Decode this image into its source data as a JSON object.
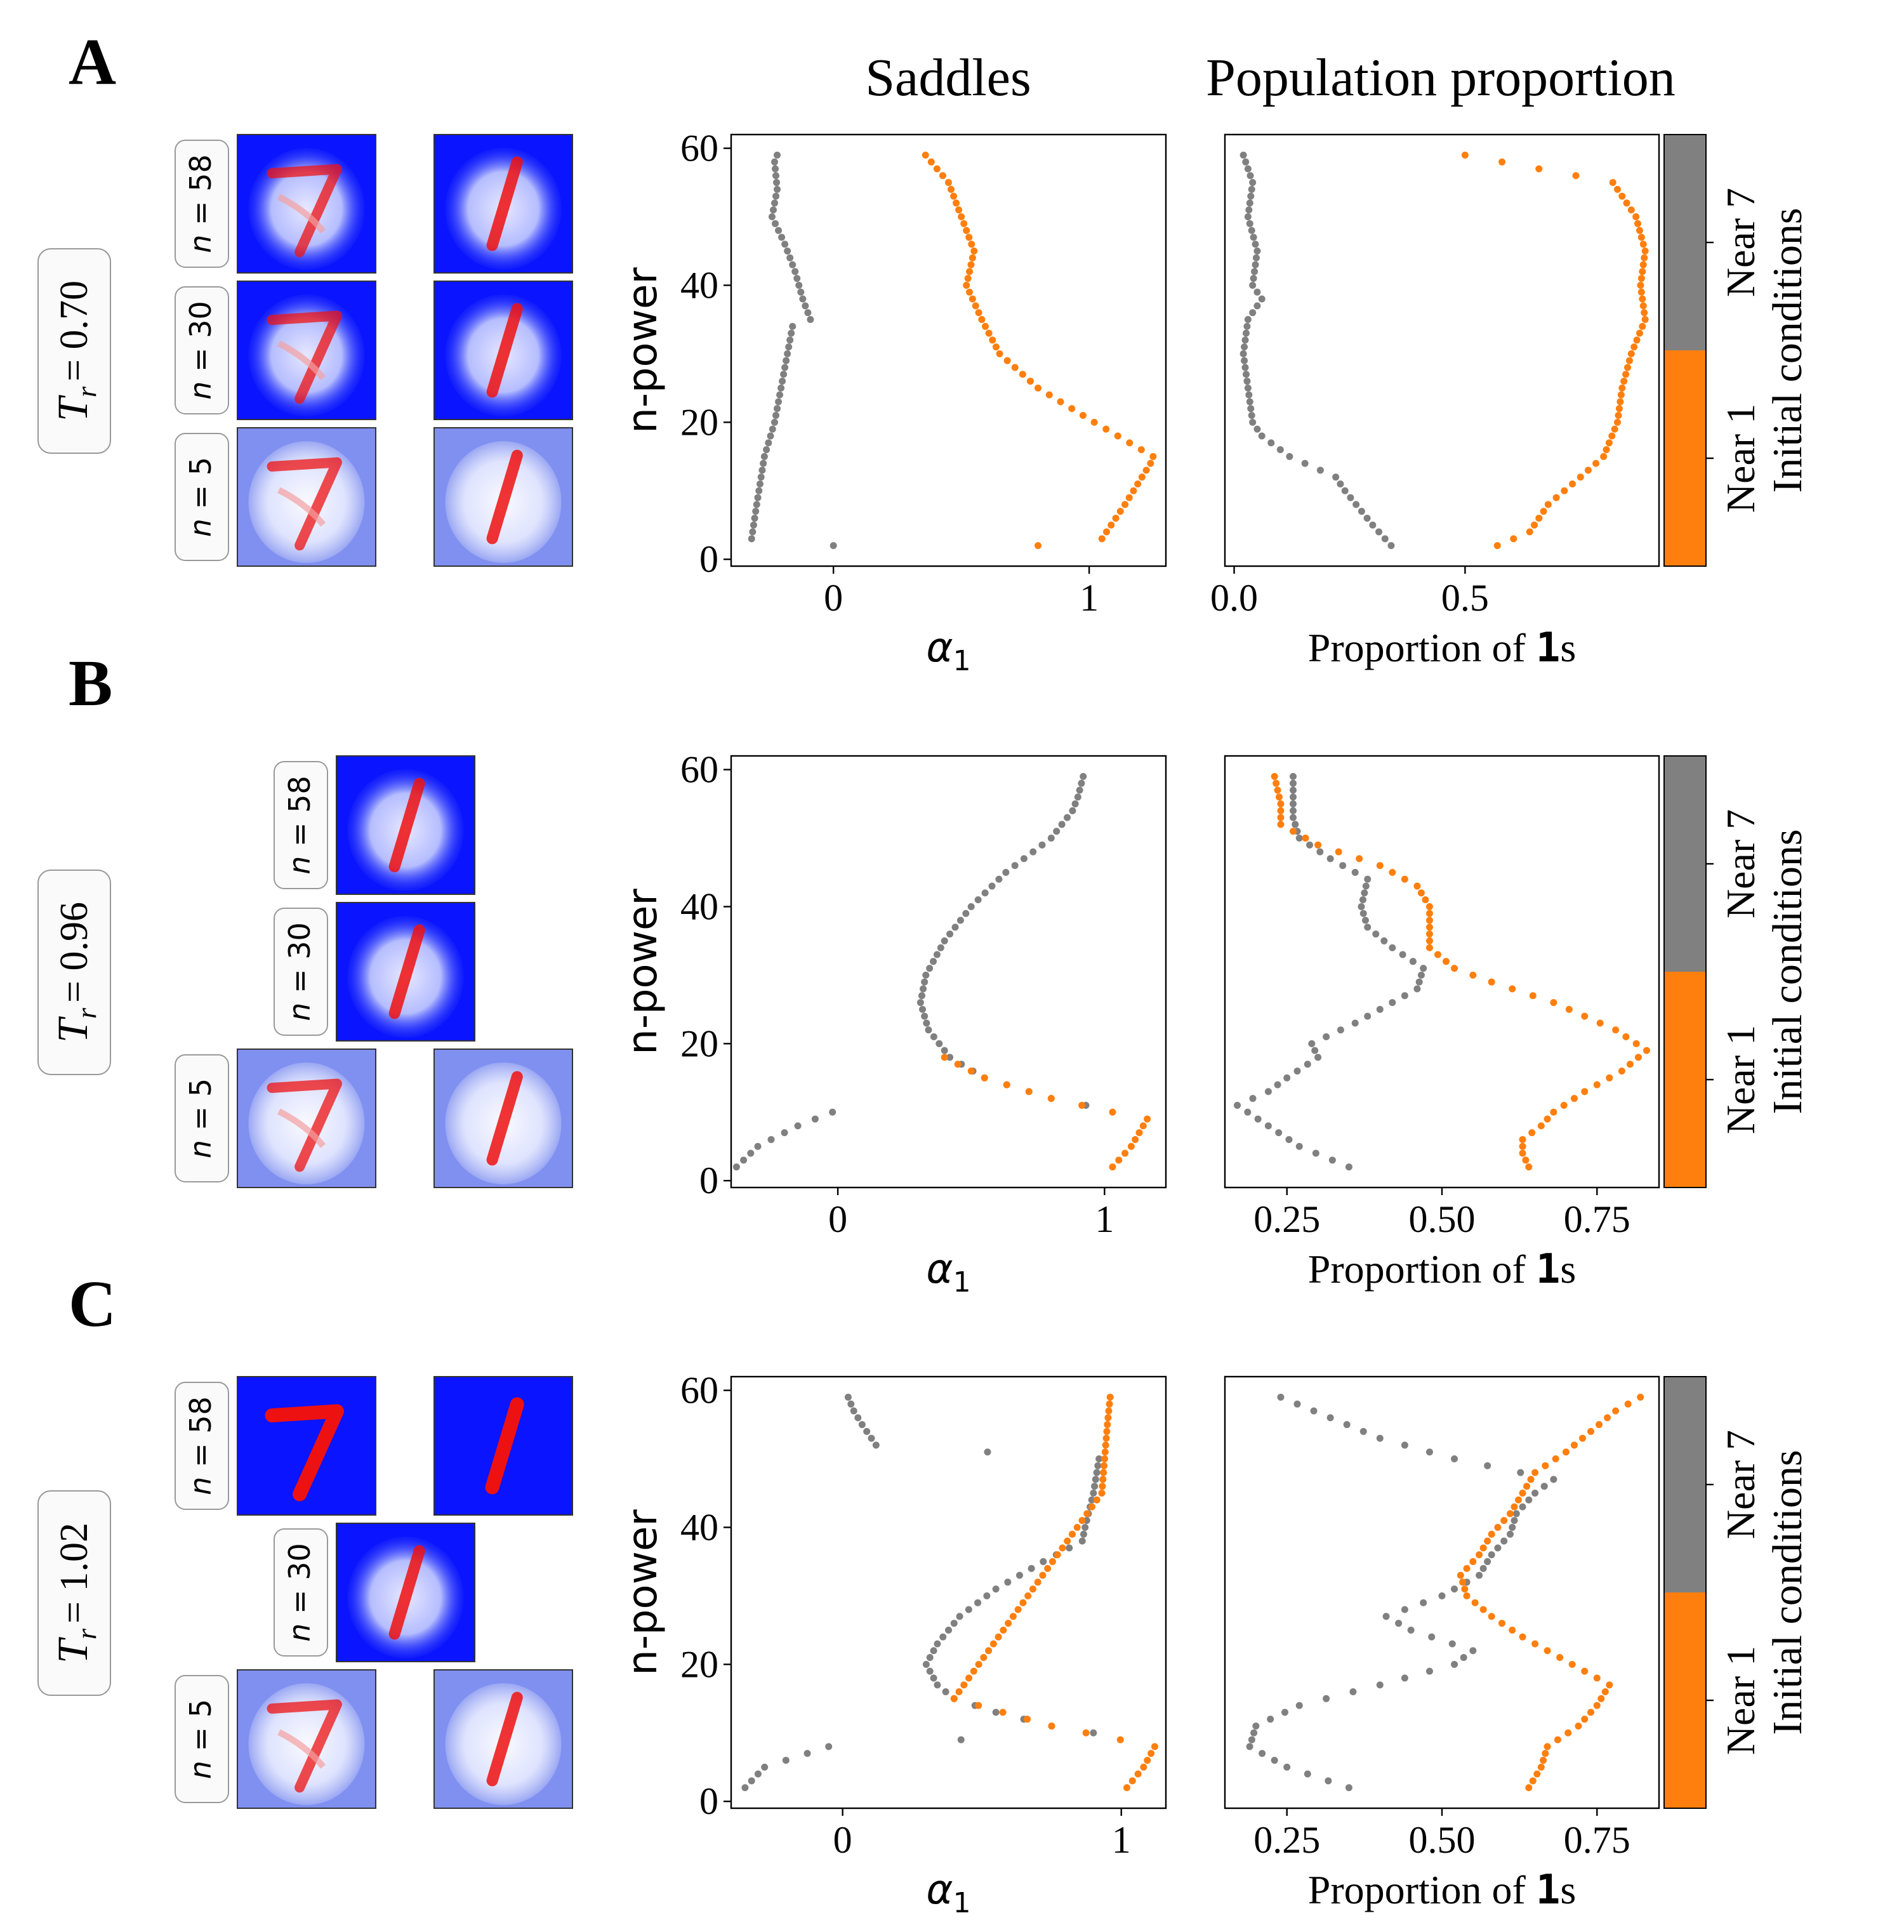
{
  "column_titles": {
    "saddles": "Saddles",
    "population": "Population proportion"
  },
  "colors": {
    "seven": "#808080",
    "one": "#ff7f0e"
  },
  "labels": {
    "n_power": "n-power",
    "alpha": "α",
    "alpha_sub": "1",
    "prop_prefix": "Proportion of ",
    "prop_bold": "1",
    "prop_suffix": "s",
    "colorbar_title": "Initial conditions",
    "near7": "Near 7",
    "near1": "Near 1",
    "n_eq": "n = "
  },
  "panels": [
    {
      "letter": "A",
      "tr_symbol": "T",
      "tr_sub": "r",
      "tr_value": "= 0.70",
      "images": [
        {
          "n": "58",
          "pair": true,
          "fade": 0.0
        },
        {
          "n": "30",
          "pair": true,
          "fade": 0.0
        },
        {
          "n": "5",
          "pair": true,
          "fade": 0.6
        }
      ]
    },
    {
      "letter": "B",
      "tr_symbol": "T",
      "tr_sub": "r",
      "tr_value": "= 0.96",
      "images": [
        {
          "n": "58",
          "pair": false,
          "fade": 0.0
        },
        {
          "n": "30",
          "pair": false,
          "fade": 0.0
        },
        {
          "n": "5",
          "pair": true,
          "fade": 0.6
        }
      ]
    },
    {
      "letter": "C",
      "tr_symbol": "T",
      "tr_sub": "r",
      "tr_value": "= 1.02",
      "images": [
        {
          "n": "58",
          "pair": true,
          "fade": 0.0,
          "sharp": true
        },
        {
          "n": "30",
          "pair": false,
          "fade": 0.0
        },
        {
          "n": "5",
          "pair": true,
          "fade": 0.6
        }
      ]
    }
  ],
  "chart_data": [
    {
      "type": "scatter",
      "panel": "A",
      "title": "Saddles",
      "xlabel": "α1",
      "ylabel": "n-power",
      "xlim": [
        -0.4,
        1.3
      ],
      "ylim": [
        -1,
        62
      ],
      "xticks": [
        {
          "v": 0,
          "t": "0"
        },
        {
          "v": 1,
          "t": "1"
        }
      ],
      "yticks": [
        0,
        20,
        40,
        60
      ],
      "series": [
        {
          "name": "Near 7",
          "color_key": "seven",
          "anchors": [
            [
              2,
              0.0
            ],
            [
              3,
              -0.32
            ],
            [
              8,
              -0.3
            ],
            [
              15,
              -0.27
            ],
            [
              20,
              -0.23
            ],
            [
              26,
              -0.2
            ],
            [
              30,
              -0.18
            ],
            [
              34,
              -0.16
            ],
            [
              35,
              -0.09
            ],
            [
              38,
              -0.12
            ],
            [
              42,
              -0.15
            ],
            [
              46,
              -0.19
            ],
            [
              50,
              -0.24
            ],
            [
              54,
              -0.22
            ],
            [
              58,
              -0.23
            ],
            [
              59,
              -0.22
            ]
          ]
        },
        {
          "name": "Near 1",
          "color_key": "one",
          "anchors": [
            [
              2,
              0.8
            ],
            [
              3,
              1.05
            ],
            [
              8,
              1.14
            ],
            [
              14,
              1.24
            ],
            [
              15,
              1.25
            ],
            [
              20,
              1.02
            ],
            [
              25,
              0.8
            ],
            [
              30,
              0.65
            ],
            [
              35,
              0.58
            ],
            [
              40,
              0.52
            ],
            [
              45,
              0.55
            ],
            [
              50,
              0.5
            ],
            [
              55,
              0.45
            ],
            [
              59,
              0.36
            ]
          ]
        }
      ]
    },
    {
      "type": "scatter",
      "panel": "A",
      "title": "Population proportion",
      "xlabel": "Proportion of 1s",
      "ylabel": "",
      "xlim": [
        -0.02,
        0.92
      ],
      "ylim": [
        -1,
        62
      ],
      "xticks": [
        {
          "v": 0.0,
          "t": "0.0"
        },
        {
          "v": 0.5,
          "t": "0.5"
        }
      ],
      "yticks": [],
      "series": [
        {
          "name": "Near 7",
          "color_key": "seven",
          "anchors": [
            [
              2,
              0.34
            ],
            [
              5,
              0.3
            ],
            [
              10,
              0.24
            ],
            [
              12,
              0.22
            ],
            [
              15,
              0.12
            ],
            [
              18,
              0.06
            ],
            [
              20,
              0.04
            ],
            [
              25,
              0.03
            ],
            [
              30,
              0.02
            ],
            [
              35,
              0.03
            ],
            [
              38,
              0.06
            ],
            [
              40,
              0.04
            ],
            [
              45,
              0.05
            ],
            [
              50,
              0.03
            ],
            [
              55,
              0.04
            ],
            [
              59,
              0.02
            ]
          ]
        },
        {
          "name": "Near 1",
          "color_key": "one",
          "anchors": [
            [
              2,
              0.57
            ],
            [
              4,
              0.64
            ],
            [
              8,
              0.68
            ],
            [
              12,
              0.75
            ],
            [
              15,
              0.8
            ],
            [
              20,
              0.83
            ],
            [
              25,
              0.84
            ],
            [
              30,
              0.86
            ],
            [
              35,
              0.89
            ],
            [
              40,
              0.88
            ],
            [
              45,
              0.89
            ],
            [
              50,
              0.87
            ],
            [
              55,
              0.82
            ],
            [
              59,
              0.5
            ]
          ]
        }
      ]
    },
    {
      "type": "scatter",
      "panel": "B",
      "title": "Saddles",
      "xlabel": "α1",
      "ylabel": "n-power",
      "xlim": [
        -0.4,
        1.23
      ],
      "ylim": [
        -1,
        62
      ],
      "xticks": [
        {
          "v": 0,
          "t": "0"
        },
        {
          "v": 1,
          "t": "1"
        }
      ],
      "yticks": [
        0,
        20,
        40,
        60
      ],
      "series": [
        {
          "name": "Near 7",
          "color_key": "seven",
          "anchors": [
            [
              2,
              -0.38
            ],
            [
              5,
              -0.3
            ],
            [
              8,
              -0.15
            ],
            [
              10,
              -0.02
            ],
            [
              11,
              0.93
            ],
            [
              12,
              0.8
            ],
            [
              15,
              0.55
            ],
            [
              18,
              0.42
            ],
            [
              22,
              0.34
            ],
            [
              26,
              0.31
            ],
            [
              30,
              0.33
            ],
            [
              35,
              0.4
            ],
            [
              40,
              0.5
            ],
            [
              45,
              0.63
            ],
            [
              50,
              0.8
            ],
            [
              54,
              0.88
            ],
            [
              56,
              0.9
            ],
            [
              59,
              0.92
            ]
          ]
        },
        {
          "name": "Near 1",
          "color_key": "one",
          "anchors": [
            [
              2,
              1.03
            ],
            [
              5,
              1.1
            ],
            [
              9,
              1.16
            ],
            [
              10,
              1.03
            ],
            [
              12,
              0.8
            ],
            [
              15,
              0.55
            ],
            [
              18,
              0.4
            ]
          ]
        }
      ]
    },
    {
      "type": "scatter",
      "panel": "B",
      "title": "Population proportion",
      "xlabel": "Proportion of 1s",
      "ylabel": "",
      "xlim": [
        0.15,
        0.85
      ],
      "ylim": [
        -1,
        62
      ],
      "xticks": [
        {
          "v": 0.25,
          "t": "0.25"
        },
        {
          "v": 0.5,
          "t": "0.50"
        },
        {
          "v": 0.75,
          "t": "0.75"
        }
      ],
      "yticks": [],
      "series": [
        {
          "name": "Near 7",
          "color_key": "seven",
          "anchors": [
            [
              2,
              0.35
            ],
            [
              5,
              0.27
            ],
            [
              8,
              0.22
            ],
            [
              11,
              0.17
            ],
            [
              13,
              0.22
            ],
            [
              15,
              0.25
            ],
            [
              18,
              0.3
            ],
            [
              20,
              0.29
            ],
            [
              23,
              0.36
            ],
            [
              26,
              0.42
            ],
            [
              28,
              0.46
            ],
            [
              31,
              0.47
            ],
            [
              34,
              0.42
            ],
            [
              37,
              0.38
            ],
            [
              40,
              0.37
            ],
            [
              44,
              0.38
            ],
            [
              47,
              0.32
            ],
            [
              50,
              0.27
            ],
            [
              53,
              0.26
            ],
            [
              56,
              0.26
            ],
            [
              59,
              0.26
            ]
          ]
        },
        {
          "name": "Near 1",
          "color_key": "one",
          "anchors": [
            [
              2,
              0.64
            ],
            [
              4,
              0.63
            ],
            [
              6,
              0.63
            ],
            [
              8,
              0.66
            ],
            [
              10,
              0.68
            ],
            [
              13,
              0.73
            ],
            [
              16,
              0.79
            ],
            [
              19,
              0.83
            ],
            [
              22,
              0.78
            ],
            [
              26,
              0.68
            ],
            [
              29,
              0.58
            ],
            [
              31,
              0.52
            ],
            [
              34,
              0.48
            ],
            [
              37,
              0.48
            ],
            [
              40,
              0.48
            ],
            [
              43,
              0.46
            ],
            [
              46,
              0.4
            ],
            [
              49,
              0.3
            ],
            [
              52,
              0.24
            ],
            [
              55,
              0.24
            ],
            [
              59,
              0.23
            ]
          ]
        }
      ]
    },
    {
      "type": "scatter",
      "panel": "C",
      "title": "Saddles",
      "xlabel": "α1",
      "ylabel": "n-power",
      "xlim": [
        -0.4,
        1.16
      ],
      "ylim": [
        -1,
        62
      ],
      "xticks": [
        {
          "v": 0,
          "t": "0"
        },
        {
          "v": 1,
          "t": "1"
        }
      ],
      "yticks": [
        0,
        20,
        40,
        60
      ],
      "series": [
        {
          "name": "Near 7",
          "color_key": "seven",
          "anchors": [
            [
              2,
              -0.35
            ],
            [
              5,
              -0.28
            ],
            [
              8,
              -0.05
            ],
            [
              10,
              0.9
            ],
            [
              11,
              0.75
            ],
            [
              13,
              0.55
            ],
            [
              15,
              0.4
            ],
            [
              17,
              0.34
            ],
            [
              20,
              0.3
            ],
            [
              23,
              0.34
            ],
            [
              27,
              0.42
            ],
            [
              31,
              0.55
            ],
            [
              35,
              0.72
            ],
            [
              38,
              0.86
            ],
            [
              40,
              0.87
            ],
            [
              45,
              0.9
            ],
            [
              50,
              0.92
            ],
            [
              52,
              0.12
            ],
            [
              55,
              0.07
            ],
            [
              57,
              0.04
            ],
            [
              59,
              0.02
            ]
          ]
        },
        {
          "name": "Near 1",
          "color_key": "one",
          "anchors": [
            [
              2,
              1.02
            ],
            [
              5,
              1.08
            ],
            [
              8,
              1.12
            ],
            [
              11,
              0.75
            ],
            [
              15,
              0.4
            ],
            [
              45,
              0.93
            ],
            [
              50,
              0.94
            ],
            [
              55,
              0.95
            ],
            [
              59,
              0.96
            ]
          ]
        }
      ]
    },
    {
      "type": "scatter",
      "panel": "C",
      "title": "Population proportion",
      "xlabel": "Proportion of 1s",
      "ylabel": "",
      "xlim": [
        0.15,
        0.85
      ],
      "ylim": [
        -1,
        62
      ],
      "xticks": [
        {
          "v": 0.25,
          "t": "0.25"
        },
        {
          "v": 0.5,
          "t": "0.50"
        },
        {
          "v": 0.75,
          "t": "0.75"
        }
      ],
      "yticks": [],
      "series": [
        {
          "name": "Near 7",
          "color_key": "seven",
          "anchors": [
            [
              2,
              0.35
            ],
            [
              5,
              0.25
            ],
            [
              8,
              0.19
            ],
            [
              11,
              0.2
            ],
            [
              14,
              0.27
            ],
            [
              17,
              0.4
            ],
            [
              20,
              0.52
            ],
            [
              22,
              0.55
            ],
            [
              25,
              0.45
            ],
            [
              27,
              0.41
            ],
            [
              30,
              0.5
            ],
            [
              33,
              0.56
            ],
            [
              36,
              0.58
            ],
            [
              39,
              0.61
            ],
            [
              42,
              0.62
            ],
            [
              45,
              0.65
            ],
            [
              47,
              0.68
            ],
            [
              50,
              0.52
            ],
            [
              53,
              0.4
            ],
            [
              56,
              0.32
            ],
            [
              59,
              0.24
            ]
          ]
        },
        {
          "name": "Near 1",
          "color_key": "one",
          "anchors": [
            [
              2,
              0.64
            ],
            [
              5,
              0.66
            ],
            [
              8,
              0.67
            ],
            [
              11,
              0.72
            ],
            [
              14,
              0.75
            ],
            [
              17,
              0.77
            ],
            [
              20,
              0.71
            ],
            [
              24,
              0.63
            ],
            [
              27,
              0.58
            ],
            [
              30,
              0.54
            ],
            [
              33,
              0.53
            ],
            [
              36,
              0.56
            ],
            [
              39,
              0.58
            ],
            [
              42,
              0.61
            ],
            [
              45,
              0.63
            ],
            [
              48,
              0.65
            ],
            [
              51,
              0.7
            ],
            [
              54,
              0.74
            ],
            [
              57,
              0.78
            ],
            [
              59,
              0.82
            ]
          ]
        }
      ]
    }
  ]
}
